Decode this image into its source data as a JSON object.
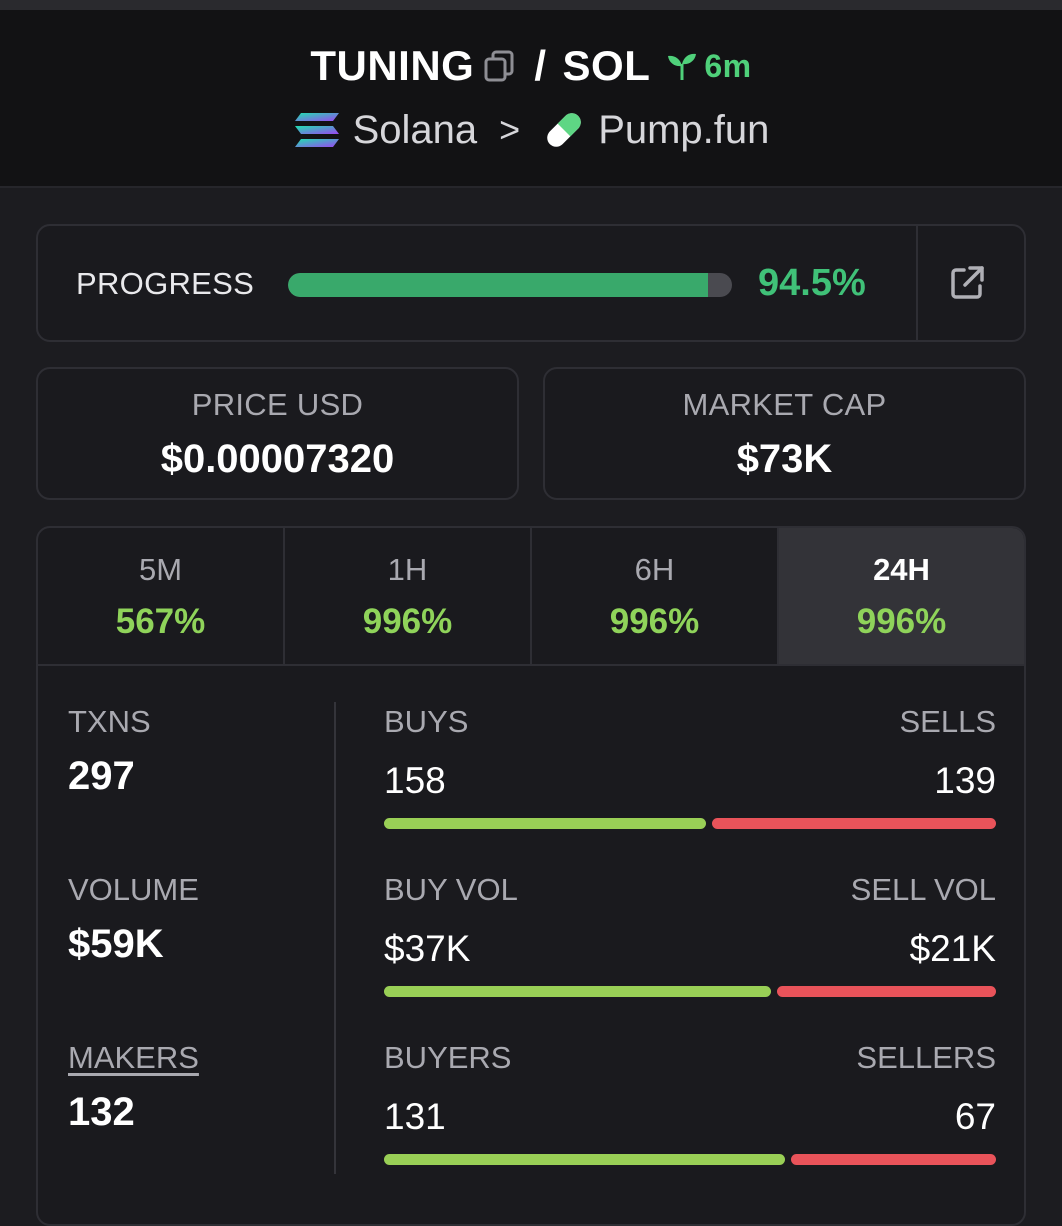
{
  "header": {
    "token": "TUNING",
    "separator": "/",
    "quote": "SOL",
    "age": "6m",
    "chain": "Solana",
    "breadcrumb_sep": ">",
    "dex": "Pump.fun"
  },
  "progress": {
    "label": "PROGRESS",
    "value_text": "94.5%",
    "fraction": 0.945
  },
  "price": {
    "label": "PRICE USD",
    "value": "$0.00007320"
  },
  "market_cap": {
    "label": "MARKET CAP",
    "value": "$73K"
  },
  "tabs": [
    {
      "label": "5M",
      "value": "567%",
      "active": false
    },
    {
      "label": "1H",
      "value": "996%",
      "active": false
    },
    {
      "label": "6H",
      "value": "996%",
      "active": false
    },
    {
      "label": "24H",
      "value": "996%",
      "active": true
    }
  ],
  "metrics": {
    "txns": {
      "label": "TXNS",
      "value": "297"
    },
    "volume": {
      "label": "VOLUME",
      "value": "$59K"
    },
    "makers": {
      "label": "MAKERS",
      "value": "132"
    }
  },
  "splits": {
    "txns": {
      "left_label": "BUYS",
      "right_label": "SELLS",
      "left_value": "158",
      "right_value": "139",
      "left_share": 0.532
    },
    "volume": {
      "left_label": "BUY VOL",
      "right_label": "SELL VOL",
      "left_value": "$37K",
      "right_value": "$21K",
      "left_share": 0.638
    },
    "makers": {
      "left_label": "BUYERS",
      "right_label": "SELLERS",
      "left_value": "131",
      "right_value": "67",
      "left_share": 0.662
    }
  },
  "colors": {
    "positive": "#8fd35a",
    "progress_fill": "#39a96b",
    "buy_bar": "#99cf56",
    "sell_bar": "#e9535a"
  },
  "icons": {
    "copy": "copy-icon",
    "age": "seedling-icon",
    "chain": "solana-logo-icon",
    "dex": "pill-icon",
    "external": "external-link-icon"
  }
}
